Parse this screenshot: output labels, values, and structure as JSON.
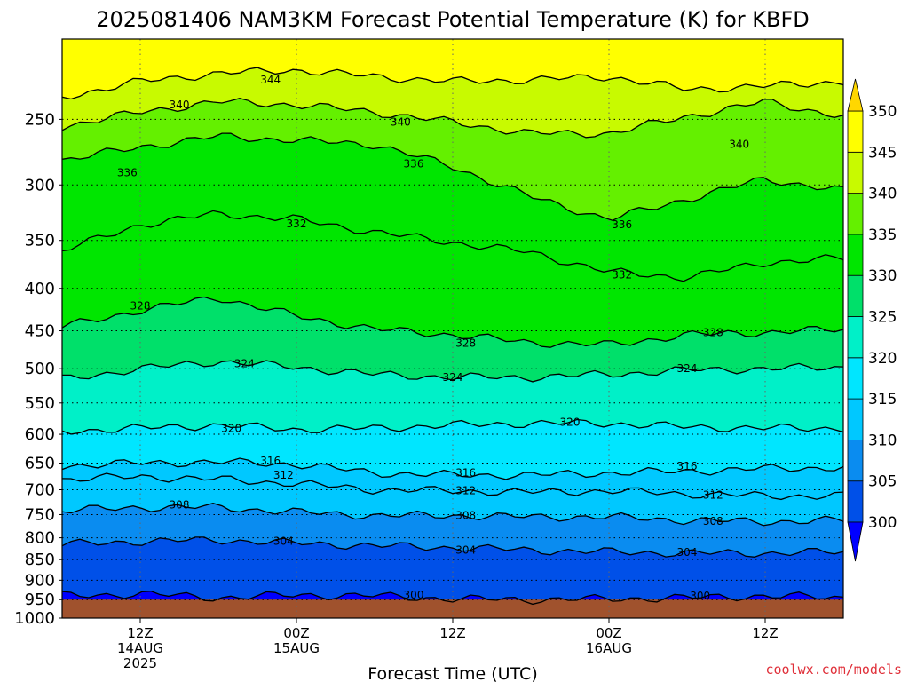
{
  "title": "2025081406 NAM3KM Forecast Potential Temperature (K) for KBFD",
  "credit": "coolwx.com/models",
  "chart_data": {
    "type": "heatmap",
    "title": "2025081406 NAM3KM Forecast Potential Temperature (K) for KBFD",
    "xlabel": "Forecast Time (UTC)",
    "ylabel": "",
    "y_axis": {
      "unit": "hPa",
      "inverted": true,
      "range": [
        1000,
        200
      ],
      "ticks": [
        250,
        300,
        350,
        400,
        450,
        500,
        550,
        600,
        650,
        700,
        750,
        800,
        850,
        900,
        950,
        1000
      ]
    },
    "x_axis": {
      "range_hours": [
        0,
        60
      ],
      "ticks": [
        {
          "hour": 6,
          "lines": [
            "12Z",
            "14AUG",
            "2025"
          ]
        },
        {
          "hour": 18,
          "lines": [
            "00Z",
            "15AUG"
          ]
        },
        {
          "hour": 30,
          "lines": [
            "12Z"
          ]
        },
        {
          "hour": 42,
          "lines": [
            "00Z",
            "16AUG"
          ]
        },
        {
          "hour": 54,
          "lines": [
            "12Z"
          ]
        }
      ]
    },
    "grid": true,
    "ground_below_hPa": 950,
    "colorbar": {
      "levels": [
        300,
        305,
        310,
        315,
        320,
        325,
        330,
        335,
        340,
        345,
        350
      ],
      "colors": [
        "#0000ff",
        "#0050e8",
        "#0a8cf0",
        "#00c8ff",
        "#00e6ff",
        "#00f0c8",
        "#00e06a",
        "#00e600",
        "#64f000",
        "#c8fa00",
        "#ffff00",
        "#ffd700"
      ],
      "extend": "both"
    },
    "contour_interval": 4,
    "contours": [
      {
        "value": 344,
        "pressures": [
          235,
          225,
          220,
          218,
          222,
          225,
          224,
          222,
          230,
          228,
          225
        ]
      },
      {
        "value": 340,
        "pressures": [
          255,
          245,
          238,
          240,
          245,
          252,
          260,
          260,
          248,
          238,
          248
        ]
      },
      {
        "value": 336,
        "pressures": [
          280,
          270,
          262,
          265,
          268,
          285,
          310,
          330,
          312,
          295,
          305
        ]
      },
      {
        "value": 332,
        "pressures": [
          360,
          335,
          325,
          330,
          342,
          352,
          362,
          382,
          388,
          372,
          368
        ]
      },
      {
        "value": 328,
        "pressures": [
          445,
          425,
          410,
          432,
          448,
          455,
          465,
          468,
          455,
          452,
          448
        ]
      },
      {
        "value": 324,
        "pressures": [
          515,
          500,
          490,
          498,
          508,
          512,
          512,
          508,
          502,
          500,
          498
        ]
      },
      {
        "value": 320,
        "pressures": [
          595,
          590,
          585,
          592,
          590,
          585,
          582,
          582,
          588,
          590,
          590
        ]
      },
      {
        "value": 316,
        "pressures": [
          655,
          650,
          648,
          652,
          668,
          672,
          672,
          668,
          665,
          660,
          658
        ]
      },
      {
        "value": 312,
        "pressures": [
          680,
          675,
          680,
          688,
          700,
          702,
          705,
          702,
          708,
          712,
          712
        ]
      },
      {
        "value": 308,
        "pressures": [
          742,
          735,
          735,
          745,
          752,
          752,
          755,
          755,
          762,
          765,
          762
        ]
      },
      {
        "value": 304,
        "pressures": [
          815,
          808,
          805,
          812,
          818,
          822,
          828,
          832,
          835,
          835,
          832
        ]
      },
      {
        "value": 300,
        "pressures": [
          940,
          935,
          945,
          938,
          940,
          948,
          950,
          948,
          945,
          940,
          945
        ]
      }
    ],
    "contour_labels": [
      {
        "value": 344,
        "hour": 16,
        "hPa": 224
      },
      {
        "value": 340,
        "hour": 9,
        "hPa": 240
      },
      {
        "value": 340,
        "hour": 26,
        "hPa": 252
      },
      {
        "value": 340,
        "hour": 52,
        "hPa": 268
      },
      {
        "value": 336,
        "hour": 5,
        "hPa": 290
      },
      {
        "value": 336,
        "hour": 27,
        "hPa": 283
      },
      {
        "value": 336,
        "hour": 43,
        "hPa": 335
      },
      {
        "value": 332,
        "hour": 18,
        "hPa": 334
      },
      {
        "value": 332,
        "hour": 43,
        "hPa": 385
      },
      {
        "value": 328,
        "hour": 6,
        "hPa": 420
      },
      {
        "value": 328,
        "hour": 31,
        "hPa": 466
      },
      {
        "value": 328,
        "hour": 50,
        "hPa": 452
      },
      {
        "value": 324,
        "hour": 14,
        "hPa": 493
      },
      {
        "value": 324,
        "hour": 30,
        "hPa": 512
      },
      {
        "value": 324,
        "hour": 48,
        "hPa": 500
      },
      {
        "value": 320,
        "hour": 13,
        "hPa": 590
      },
      {
        "value": 320,
        "hour": 39,
        "hPa": 580
      },
      {
        "value": 316,
        "hour": 16,
        "hPa": 646
      },
      {
        "value": 316,
        "hour": 31,
        "hPa": 668
      },
      {
        "value": 316,
        "hour": 48,
        "hPa": 656
      },
      {
        "value": 312,
        "hour": 17,
        "hPa": 672
      },
      {
        "value": 312,
        "hour": 31,
        "hPa": 702
      },
      {
        "value": 312,
        "hour": 50,
        "hPa": 710
      },
      {
        "value": 308,
        "hour": 9,
        "hPa": 730
      },
      {
        "value": 308,
        "hour": 31,
        "hPa": 752
      },
      {
        "value": 308,
        "hour": 50,
        "hPa": 764
      },
      {
        "value": 304,
        "hour": 17,
        "hPa": 808
      },
      {
        "value": 304,
        "hour": 31,
        "hPa": 828
      },
      {
        "value": 304,
        "hour": 48,
        "hPa": 833
      },
      {
        "value": 300,
        "hour": 27,
        "hPa": 938
      },
      {
        "value": 300,
        "hour": 49,
        "hPa": 940
      }
    ]
  }
}
